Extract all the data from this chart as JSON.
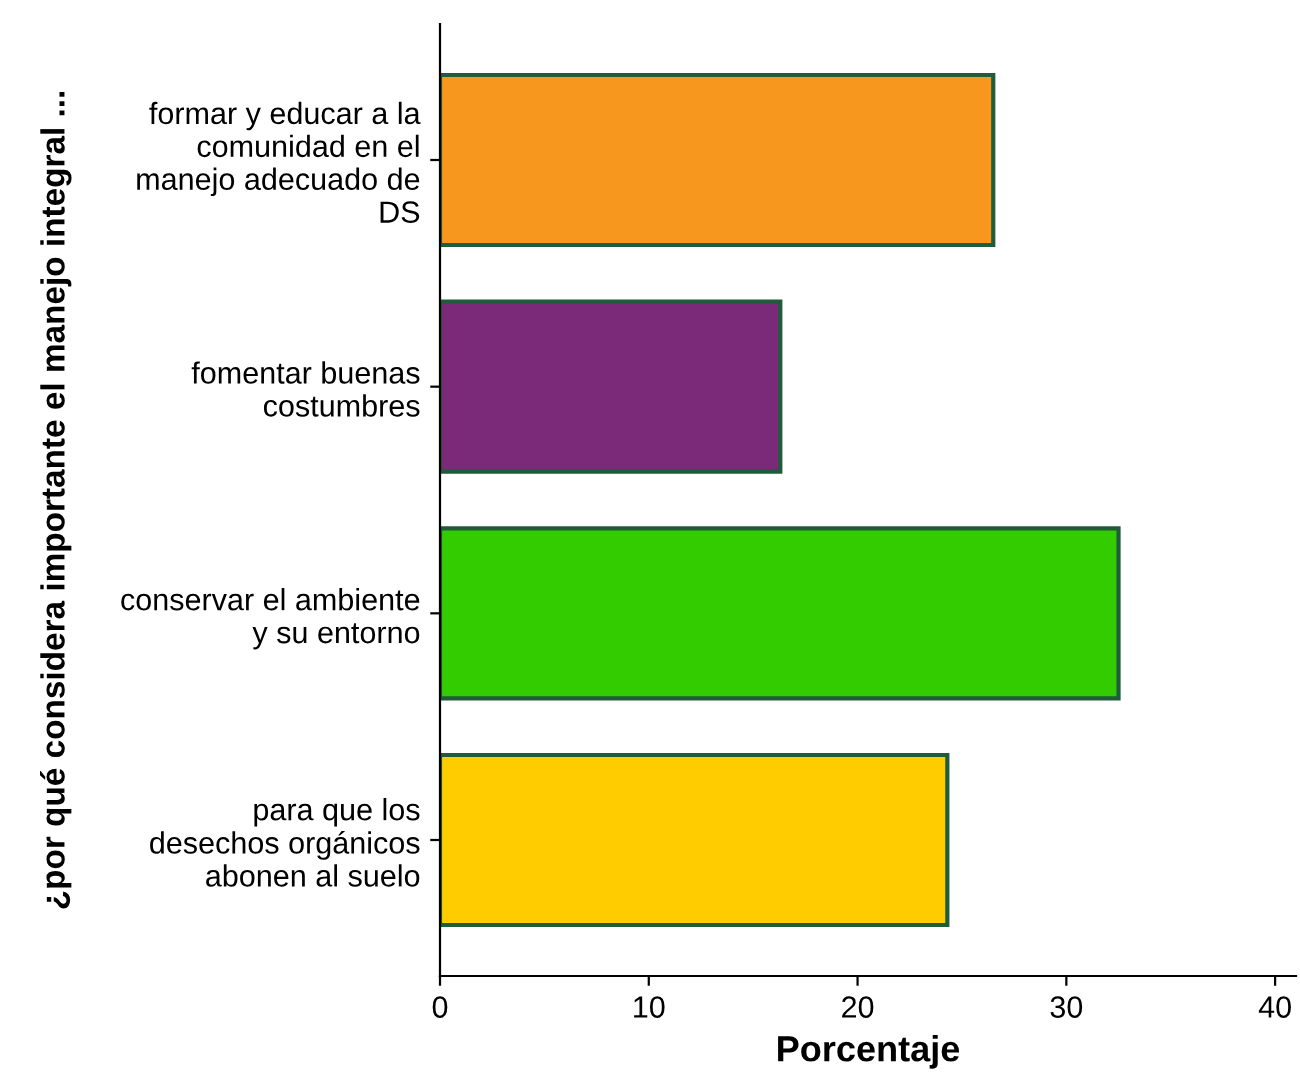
{
  "chart_data": {
    "type": "bar",
    "orientation": "horizontal",
    "xlabel": "Porcentaje",
    "ylabel": "¿por qué considera importante el manejo integral ...",
    "categories": [
      "formar y educar a la\ncomunidad en el\nmanejo adecuado de\nDS",
      "fomentar buenas\ncostumbres",
      "conservar el ambiente\ny su entorno",
      "para que los\ndesechos orgánicos\nabonen al suelo"
    ],
    "values": [
      26.5,
      16.3,
      32.5,
      24.3
    ],
    "colors": [
      "#f7971e",
      "#7b2a7a",
      "#33cc00",
      "#ffcc00"
    ],
    "xlim": [
      0,
      41
    ],
    "xticks": [
      0,
      10,
      20,
      30,
      40
    ],
    "grid": false
  }
}
